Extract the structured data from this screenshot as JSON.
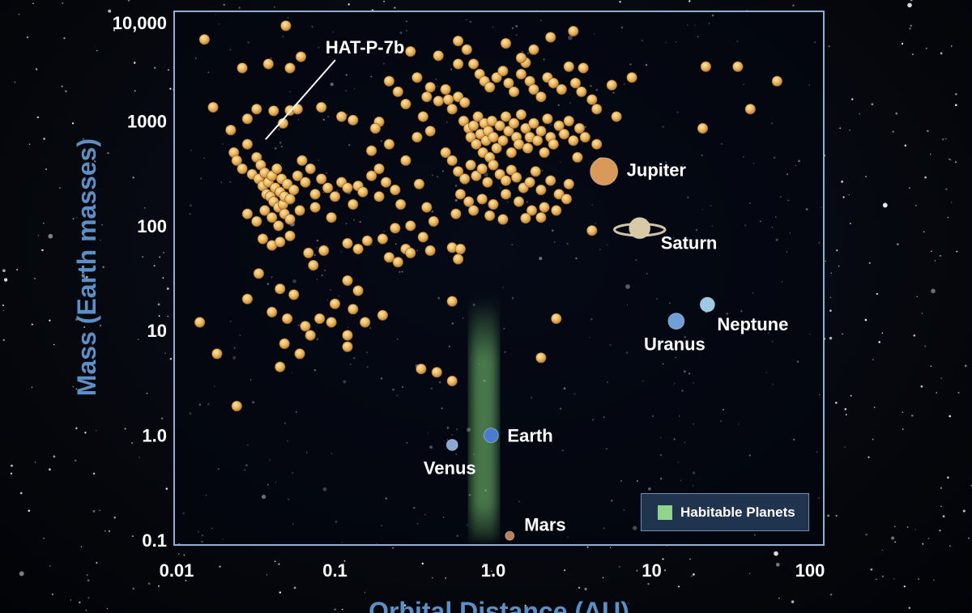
{
  "chart_data": {
    "type": "scatter",
    "xlabel": "Orbital Distance (AU)",
    "ylabel": "Mass (Earth masses)",
    "xscale": "log",
    "yscale": "log",
    "xlim": [
      0.01,
      100
    ],
    "ylim": [
      0.1,
      10000
    ],
    "x_ticks": [
      "0.01",
      "0.1",
      "1.0",
      "10",
      "100"
    ],
    "y_ticks": [
      "0.1",
      "1.0",
      "10",
      "100",
      "1000",
      "10,000"
    ],
    "legend": {
      "label": "Habitable Planets",
      "color": "#8fd48a",
      "placement": "bottom-right"
    },
    "habitable_zone": {
      "x_range": [
        0.72,
        1.06
      ],
      "y_range": [
        0.1,
        20
      ]
    },
    "annotations": [
      {
        "text": "HAT-P-7b",
        "x": 0.034,
        "y": 600
      }
    ],
    "solar_system": [
      {
        "name": "Venus",
        "x": 0.55,
        "y": 0.81,
        "color": "#8aa6d6"
      },
      {
        "name": "Earth",
        "x": 0.97,
        "y": 1.0,
        "color": "#4a7bd0"
      },
      {
        "name": "Mars",
        "x": 1.27,
        "y": 0.11,
        "color": "#b8825a"
      },
      {
        "name": "Jupiter",
        "x": 5.0,
        "y": 330,
        "color": "#d9995a"
      },
      {
        "name": "Saturn",
        "x": 8.4,
        "y": 95,
        "color": "#d8c9a6"
      },
      {
        "name": "Uranus",
        "x": 14.3,
        "y": 12.3,
        "color": "#6f9fd8"
      },
      {
        "name": "Neptune",
        "x": 22.5,
        "y": 17.7,
        "color": "#9cc9e6"
      }
    ],
    "exoplanets": [
      [
        0.015,
        6000
      ],
      [
        0.026,
        3200
      ],
      [
        0.038,
        3500
      ],
      [
        0.049,
        8100
      ],
      [
        0.052,
        3200
      ],
      [
        0.061,
        4100
      ],
      [
        0.017,
        1350
      ],
      [
        0.022,
        820
      ],
      [
        0.028,
        1050
      ],
      [
        0.032,
        1300
      ],
      [
        0.041,
        1250
      ],
      [
        0.047,
        950
      ],
      [
        0.052,
        1260
      ],
      [
        0.058,
        1300
      ],
      [
        0.082,
        1350
      ],
      [
        0.11,
        1100
      ],
      [
        0.13,
        1020
      ],
      [
        0.19,
        980
      ],
      [
        0.023,
        500
      ],
      [
        0.024,
        420
      ],
      [
        0.026,
        350
      ],
      [
        0.028,
        600
      ],
      [
        0.03,
        310
      ],
      [
        0.032,
        450
      ],
      [
        0.033,
        280
      ],
      [
        0.034,
        380
      ],
      [
        0.035,
        240
      ],
      [
        0.036,
        320
      ],
      [
        0.037,
        200
      ],
      [
        0.038,
        260
      ],
      [
        0.039,
        190
      ],
      [
        0.04,
        300
      ],
      [
        0.041,
        170
      ],
      [
        0.042,
        230
      ],
      [
        0.043,
        350
      ],
      [
        0.044,
        150
      ],
      [
        0.045,
        210
      ],
      [
        0.046,
        280
      ],
      [
        0.047,
        160
      ],
      [
        0.048,
        190
      ],
      [
        0.05,
        250
      ],
      [
        0.052,
        180
      ],
      [
        0.055,
        220
      ],
      [
        0.058,
        300
      ],
      [
        0.062,
        420
      ],
      [
        0.065,
        260
      ],
      [
        0.07,
        350
      ],
      [
        0.075,
        200
      ],
      [
        0.082,
        280
      ],
      [
        0.09,
        230
      ],
      [
        0.1,
        190
      ],
      [
        0.11,
        260
      ],
      [
        0.12,
        230
      ],
      [
        0.13,
        160
      ],
      [
        0.14,
        240
      ],
      [
        0.15,
        210
      ],
      [
        0.17,
        300
      ],
      [
        0.19,
        190
      ],
      [
        0.21,
        260
      ],
      [
        0.24,
        220
      ],
      [
        0.028,
        130
      ],
      [
        0.032,
        110
      ],
      [
        0.036,
        140
      ],
      [
        0.04,
        120
      ],
      [
        0.044,
        100
      ],
      [
        0.048,
        130
      ],
      [
        0.052,
        115
      ],
      [
        0.06,
        140
      ],
      [
        0.075,
        150
      ],
      [
        0.095,
        120
      ],
      [
        0.035,
        75
      ],
      [
        0.04,
        65
      ],
      [
        0.045,
        70
      ],
      [
        0.052,
        80
      ],
      [
        0.068,
        55
      ],
      [
        0.073,
        42
      ],
      [
        0.085,
        58
      ],
      [
        0.12,
        68
      ],
      [
        0.14,
        60
      ],
      [
        0.16,
        72
      ],
      [
        0.2,
        75
      ],
      [
        0.22,
        50
      ],
      [
        0.25,
        45
      ],
      [
        0.28,
        60
      ],
      [
        0.3,
        55
      ],
      [
        0.36,
        78
      ],
      [
        0.4,
        58
      ],
      [
        0.55,
        62
      ],
      [
        0.6,
        48
      ],
      [
        0.033,
        35
      ],
      [
        0.045,
        25
      ],
      [
        0.055,
        22
      ],
      [
        0.12,
        30
      ],
      [
        0.14,
        24
      ],
      [
        0.028,
        20
      ],
      [
        0.04,
        15
      ],
      [
        0.05,
        13
      ],
      [
        0.065,
        11
      ],
      [
        0.08,
        13
      ],
      [
        0.095,
        12
      ],
      [
        0.1,
        18
      ],
      [
        0.13,
        16
      ],
      [
        0.155,
        12
      ],
      [
        0.2,
        14
      ],
      [
        0.12,
        7
      ],
      [
        0.048,
        7.5
      ],
      [
        0.07,
        9
      ],
      [
        0.014,
        12
      ],
      [
        0.018,
        6
      ],
      [
        0.045,
        4.5
      ],
      [
        0.06,
        6
      ],
      [
        0.12,
        9
      ],
      [
        0.024,
        1.9
      ],
      [
        0.35,
        4.3
      ],
      [
        0.44,
        4.0
      ],
      [
        0.55,
        3.3
      ],
      [
        2.0,
        5.5
      ],
      [
        2.5,
        13
      ],
      [
        0.55,
        19
      ],
      [
        0.62,
        60
      ],
      [
        0.4,
        2100
      ],
      [
        0.38,
        1700
      ],
      [
        0.45,
        1550
      ],
      [
        0.5,
        2000
      ],
      [
        0.52,
        1600
      ],
      [
        0.55,
        1300
      ],
      [
        0.6,
        1700
      ],
      [
        0.66,
        1500
      ],
      [
        0.6,
        5800
      ],
      [
        0.68,
        4800
      ],
      [
        0.75,
        3500
      ],
      [
        0.82,
        2800
      ],
      [
        0.88,
        2400
      ],
      [
        0.95,
        2100
      ],
      [
        1.05,
        2600
      ],
      [
        1.15,
        3000
      ],
      [
        1.25,
        2300
      ],
      [
        1.35,
        1900
      ],
      [
        1.5,
        2800
      ],
      [
        1.6,
        3600
      ],
      [
        1.7,
        2400
      ],
      [
        1.8,
        2000
      ],
      [
        2.0,
        1700
      ],
      [
        2.2,
        2600
      ],
      [
        2.4,
        2300
      ],
      [
        2.7,
        2000
      ],
      [
        3.0,
        3300
      ],
      [
        3.3,
        2300
      ],
      [
        3.6,
        1900
      ],
      [
        4.2,
        1600
      ],
      [
        0.65,
        1000
      ],
      [
        0.7,
        850
      ],
      [
        0.72,
        700
      ],
      [
        0.75,
        900
      ],
      [
        0.78,
        600
      ],
      [
        0.8,
        1100
      ],
      [
        0.83,
        750
      ],
      [
        0.86,
        500
      ],
      [
        0.88,
        950
      ],
      [
        0.9,
        650
      ],
      [
        0.93,
        800
      ],
      [
        0.95,
        450
      ],
      [
        0.98,
        1000
      ],
      [
        1.0,
        700
      ],
      [
        1.05,
        550
      ],
      [
        1.1,
        900
      ],
      [
        1.15,
        650
      ],
      [
        1.2,
        1100
      ],
      [
        1.25,
        800
      ],
      [
        1.3,
        500
      ],
      [
        1.35,
        950
      ],
      [
        1.4,
        700
      ],
      [
        1.45,
        600
      ],
      [
        1.5,
        1150
      ],
      [
        1.6,
        850
      ],
      [
        1.65,
        550
      ],
      [
        1.7,
        700
      ],
      [
        1.8,
        950
      ],
      [
        1.9,
        650
      ],
      [
        2.0,
        800
      ],
      [
        2.1,
        500
      ],
      [
        2.2,
        1050
      ],
      [
        2.3,
        700
      ],
      [
        2.4,
        600
      ],
      [
        2.6,
        900
      ],
      [
        2.8,
        750
      ],
      [
        3.0,
        1000
      ],
      [
        3.2,
        650
      ],
      [
        3.5,
        850
      ],
      [
        3.8,
        700
      ],
      [
        0.5,
        500
      ],
      [
        0.55,
        420
      ],
      [
        0.6,
        330
      ],
      [
        0.66,
        280
      ],
      [
        0.72,
        380
      ],
      [
        0.78,
        300
      ],
      [
        0.85,
        350
      ],
      [
        0.92,
        260
      ],
      [
        1.0,
        380
      ],
      [
        1.1,
        310
      ],
      [
        1.2,
        270
      ],
      [
        1.3,
        340
      ],
      [
        1.4,
        290
      ],
      [
        1.55,
        230
      ],
      [
        1.7,
        260
      ],
      [
        1.85,
        330
      ],
      [
        2.0,
        220
      ],
      [
        2.3,
        270
      ],
      [
        2.6,
        200
      ],
      [
        3.0,
        250
      ],
      [
        0.62,
        200
      ],
      [
        0.7,
        170
      ],
      [
        0.85,
        180
      ],
      [
        1.0,
        160
      ],
      [
        1.2,
        200
      ],
      [
        1.45,
        170
      ],
      [
        1.75,
        140
      ],
      [
        2.1,
        150
      ],
      [
        2.5,
        140
      ],
      [
        0.38,
        150
      ],
      [
        0.42,
        110
      ],
      [
        0.58,
        130
      ],
      [
        0.75,
        140
      ],
      [
        0.95,
        125
      ],
      [
        1.15,
        115
      ],
      [
        1.6,
        118
      ],
      [
        2.0,
        120
      ],
      [
        0.3,
        100
      ],
      [
        0.34,
        250
      ],
      [
        0.28,
        420
      ],
      [
        0.26,
        160
      ],
      [
        0.24,
        95
      ],
      [
        0.22,
        600
      ],
      [
        0.19,
        350
      ],
      [
        0.17,
        520
      ],
      [
        0.33,
        700
      ],
      [
        0.4,
        800
      ],
      [
        0.18,
        850
      ],
      [
        0.22,
        2400
      ],
      [
        0.25,
        1900
      ],
      [
        0.28,
        1450
      ],
      [
        0.33,
        2600
      ],
      [
        0.36,
        1100
      ],
      [
        0.3,
        4600
      ],
      [
        0.45,
        4200
      ],
      [
        0.6,
        3500
      ],
      [
        1.2,
        5500
      ],
      [
        1.5,
        4000
      ],
      [
        1.8,
        4800
      ],
      [
        2.3,
        6300
      ],
      [
        3.2,
        7200
      ],
      [
        3.7,
        3200
      ],
      [
        4.5,
        1300
      ],
      [
        5.6,
        2200
      ],
      [
        7.5,
        2600
      ],
      [
        22,
        3300
      ],
      [
        35,
        3300
      ],
      [
        42,
        1300
      ],
      [
        21,
        850
      ],
      [
        62,
        2400
      ],
      [
        4.5,
        600
      ],
      [
        4.8,
        400
      ],
      [
        3.4,
        450
      ],
      [
        2.9,
        180
      ],
      [
        4.2,
        90
      ],
      [
        6.0,
        1100
      ]
    ]
  }
}
